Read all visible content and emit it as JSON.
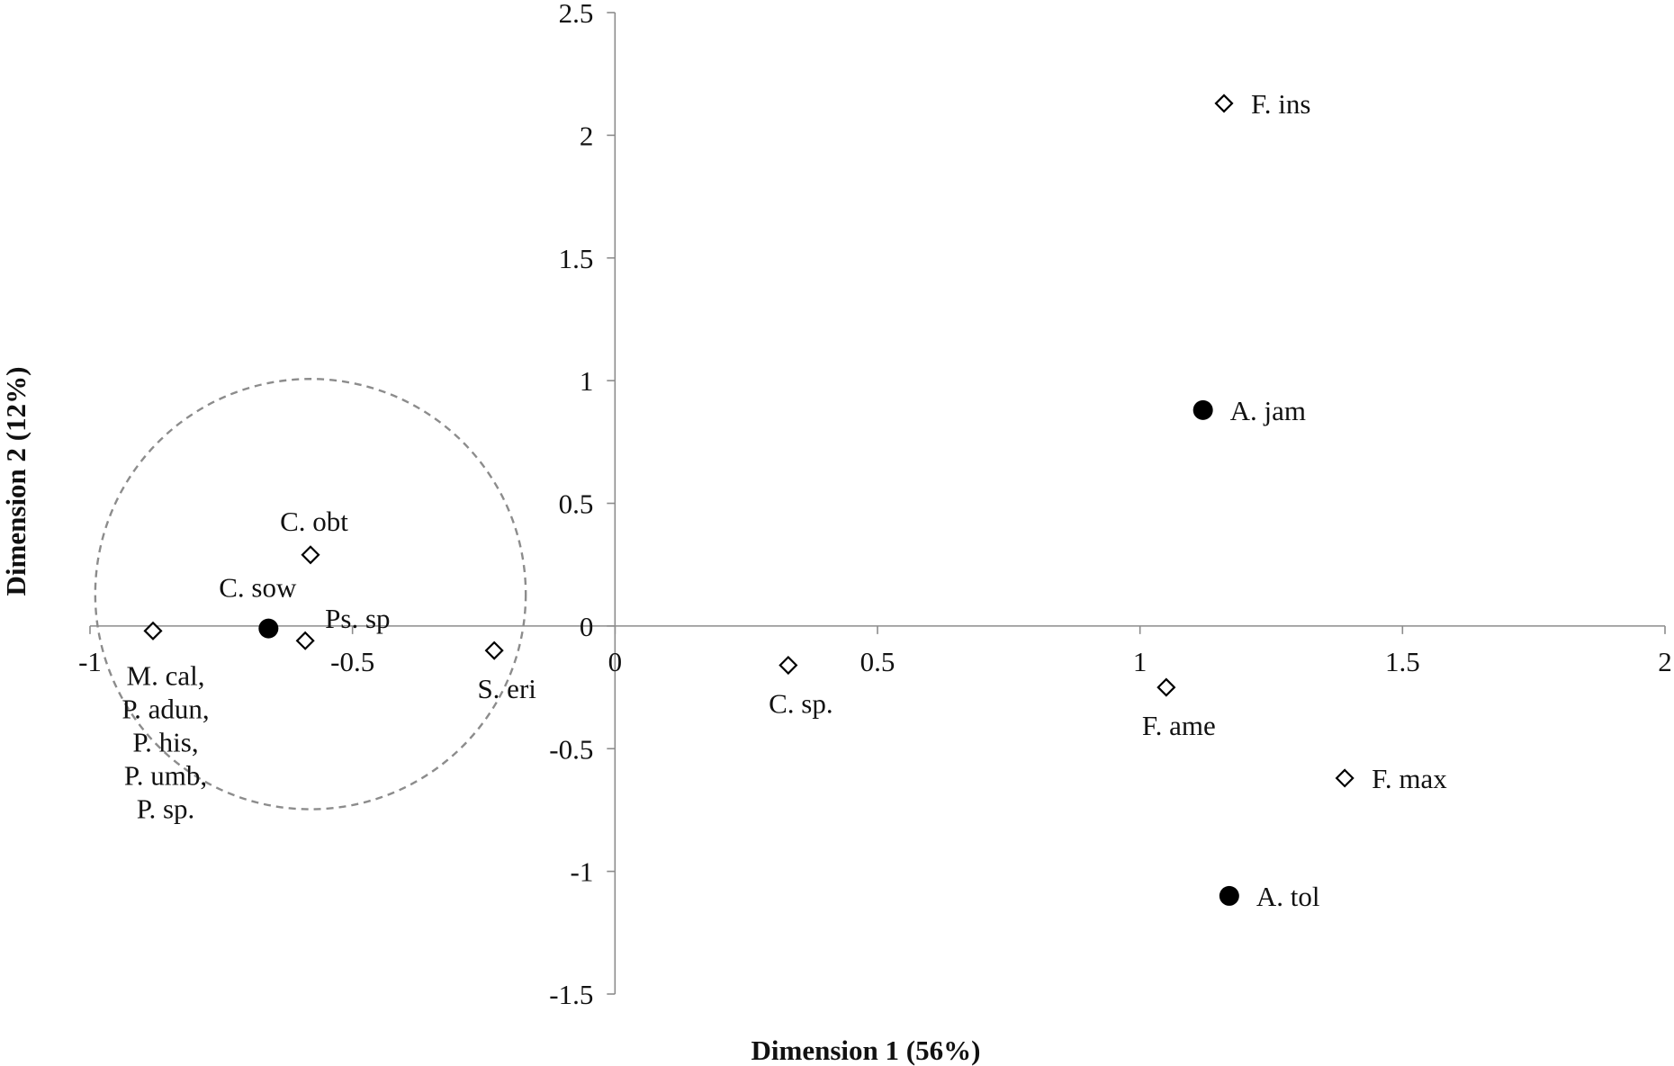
{
  "chart_data": {
    "type": "scatter",
    "title": "",
    "xlabel": "Dimension 1 (56%)",
    "ylabel": "Dimension 2 (12%)",
    "xlim": [
      -1,
      2
    ],
    "ylim": [
      -1.5,
      2.5
    ],
    "x_ticks": [
      -1,
      -0.5,
      0,
      0.5,
      1,
      1.5,
      2
    ],
    "x_tick_labels": [
      "-1",
      "-0.5",
      "0",
      "0.5",
      "1",
      "1.5",
      "2"
    ],
    "y_ticks": [
      -1.5,
      -1,
      -0.5,
      0,
      0.5,
      1,
      1.5,
      2,
      2.5
    ],
    "y_tick_labels": [
      "-1.5",
      "-1",
      "-0.5",
      "0",
      "0.5",
      "1",
      "1.5",
      "2",
      "2.5"
    ],
    "grid": false,
    "legend": "none",
    "marker_colors": {
      "filled": "#000000",
      "open": "#ffffff",
      "outline": "#000000",
      "circle": "#8c8c8c"
    },
    "points": [
      {
        "x": 1.16,
        "y": 2.13,
        "marker": "open-diamond",
        "label_lines": [
          "F. ins"
        ],
        "label_pos": "right"
      },
      {
        "x": 1.12,
        "y": 0.88,
        "marker": "filled-circle",
        "label_lines": [
          "A. jam"
        ],
        "label_pos": "right"
      },
      {
        "x": -0.58,
        "y": 0.29,
        "marker": "open-diamond",
        "label_lines": [
          "C. obt"
        ],
        "label_pos": "above"
      },
      {
        "x": -0.66,
        "y": -0.01,
        "marker": "filled-circle",
        "label_lines": [
          "C. sow"
        ],
        "label_pos": "above"
      },
      {
        "x": -0.59,
        "y": -0.06,
        "marker": "open-diamond",
        "label_lines": [
          "Ps. sp"
        ],
        "label_pos": "above-right"
      },
      {
        "x": -0.88,
        "y": -0.02,
        "marker": "open-diamond",
        "label_lines": [
          "M. cal,",
          "P. adun,",
          "P. his,",
          "P. umb,",
          "P. sp."
        ],
        "label_pos": "below"
      },
      {
        "x": -0.23,
        "y": -0.1,
        "marker": "open-diamond",
        "label_lines": [
          "S. eri"
        ],
        "label_pos": "below"
      },
      {
        "x": 0.33,
        "y": -0.16,
        "marker": "open-diamond",
        "label_lines": [
          "C. sp."
        ],
        "label_pos": "below"
      },
      {
        "x": 1.05,
        "y": -0.25,
        "marker": "open-diamond",
        "label_lines": [
          "F. ame"
        ],
        "label_pos": "below"
      },
      {
        "x": 1.39,
        "y": -0.62,
        "marker": "open-diamond",
        "label_lines": [
          "F. max"
        ],
        "label_pos": "right"
      },
      {
        "x": 1.17,
        "y": -1.1,
        "marker": "filled-circle",
        "label_lines": [
          "A. tol"
        ],
        "label_pos": "right"
      }
    ],
    "annotations": [
      {
        "type": "dashed-circle",
        "center": [
          -0.58,
          0.13
        ],
        "radius_x": 0.41
      }
    ]
  }
}
